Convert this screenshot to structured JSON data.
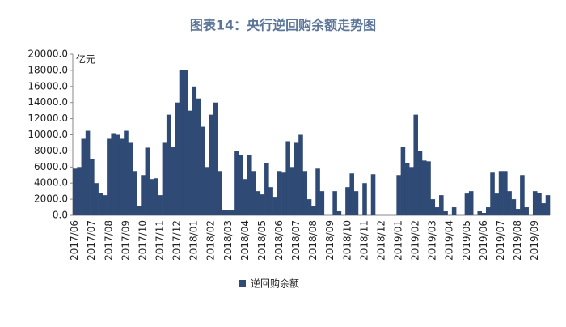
{
  "chart_data": {
    "type": "bar",
    "title": "图表14：央行逆回购余额走势图",
    "y_unit": "亿元",
    "categories": [
      "2017/06",
      null,
      null,
      null,
      "2017/07",
      null,
      null,
      null,
      "2017/08",
      null,
      null,
      null,
      "2017/09",
      null,
      null,
      null,
      "2017/10",
      null,
      null,
      null,
      "2017/11",
      null,
      null,
      null,
      "2017/12",
      null,
      null,
      null,
      "2018/01",
      null,
      null,
      null,
      "2018/02",
      null,
      null,
      null,
      "2018/03",
      null,
      null,
      null,
      "2018/04",
      null,
      null,
      null,
      "2018/05",
      null,
      null,
      null,
      "2018/06",
      null,
      null,
      null,
      "2018/07",
      null,
      null,
      null,
      "2018/08",
      null,
      null,
      null,
      "2018/09",
      null,
      null,
      null,
      "2018/10",
      null,
      null,
      null,
      "2018/11",
      null,
      null,
      null,
      "2018/12",
      null,
      null,
      null,
      "2019/01",
      null,
      null,
      null,
      "2019/02",
      null,
      null,
      null,
      "2019/03",
      null,
      null,
      null,
      "2019/04",
      null,
      null,
      null,
      "2019/05",
      null,
      null,
      null,
      "2019/06",
      null,
      null,
      null,
      "2019/07",
      null,
      null,
      null,
      "2019/08",
      null,
      null,
      null,
      "2019/09",
      null,
      null,
      null
    ],
    "series": [
      {
        "name": "逆回购余额",
        "color": "#2e4a75",
        "values": [
          5800,
          6000,
          9500,
          10500,
          7000,
          4000,
          2800,
          2500,
          9500,
          10200,
          10000,
          9500,
          10500,
          9000,
          5500,
          1200,
          5000,
          8400,
          4500,
          4600,
          2500,
          9000,
          12500,
          8500,
          14000,
          18000,
          18000,
          13000,
          16000,
          14500,
          11000,
          6000,
          12500,
          14000,
          5500,
          700,
          600,
          600,
          8000,
          7500,
          4500,
          7500,
          5500,
          3000,
          2600,
          6500,
          3500,
          2200,
          5500,
          5300,
          9200,
          6000,
          9000,
          10000,
          5500,
          2000,
          1200,
          5800,
          3000,
          0,
          0,
          3000,
          500,
          0,
          3500,
          5200,
          3000,
          0,
          4000,
          0,
          5100,
          0,
          0,
          0,
          0,
          0,
          5000,
          8500,
          6500,
          6000,
          12500,
          8000,
          6800,
          6700,
          2000,
          1000,
          2500,
          500,
          0,
          1000,
          0,
          0,
          2700,
          3000,
          0,
          500,
          300,
          1000,
          5300,
          2700,
          5500,
          5500,
          3000,
          2000,
          800,
          5000,
          1000,
          0,
          3000,
          2800,
          1500,
          2500
        ]
      }
    ],
    "ylim": [
      0,
      20000
    ],
    "yticks": [
      {
        "value": 0,
        "label": "0.0"
      },
      {
        "value": 2000,
        "label": "2000.0"
      },
      {
        "value": 4000,
        "label": "4000.0"
      },
      {
        "value": 6000,
        "label": "6000.0"
      },
      {
        "value": 8000,
        "label": "8000.0"
      },
      {
        "value": 10000,
        "label": "10000.0"
      },
      {
        "value": 12000,
        "label": "12000.0"
      },
      {
        "value": 14000,
        "label": "14000.0"
      },
      {
        "value": 16000,
        "label": "16000.0"
      },
      {
        "value": 18000,
        "label": "18000.0"
      },
      {
        "value": 20000,
        "label": "20000.0"
      }
    ]
  }
}
